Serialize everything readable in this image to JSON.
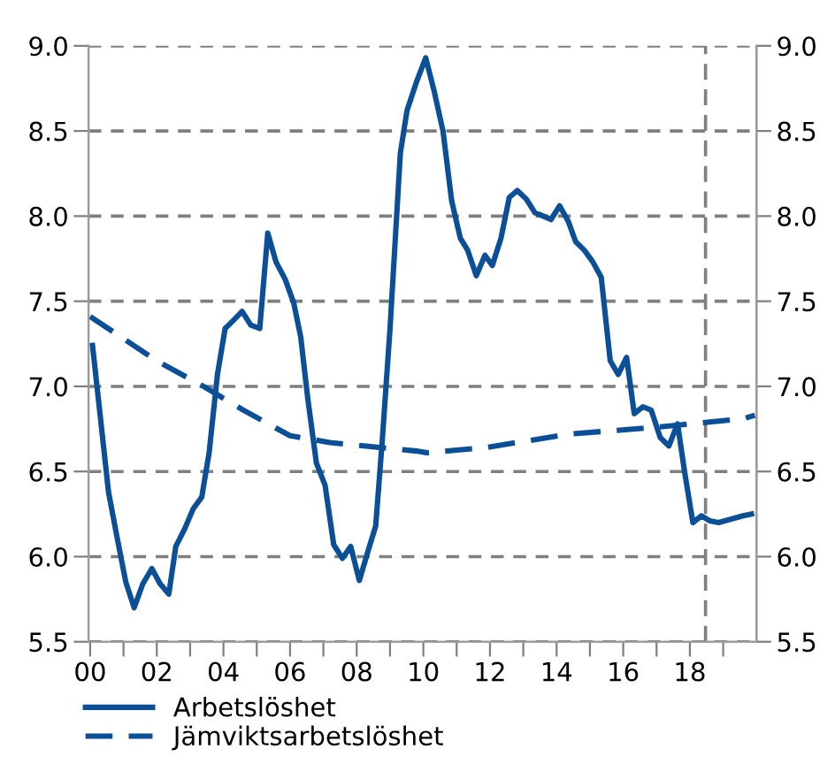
{
  "chart_data": {
    "type": "line",
    "series": [
      {
        "name": "Arbetslöshet",
        "color": "#0b4f96",
        "line_style": "solid",
        "x": [
          0.07,
          0.3,
          0.55,
          0.81,
          1.07,
          1.32,
          1.58,
          1.85,
          2.1,
          2.36,
          2.57,
          2.83,
          3.09,
          3.35,
          3.57,
          3.82,
          4.05,
          4.31,
          4.56,
          4.82,
          5.09,
          5.33,
          5.58,
          5.85,
          6.11,
          6.32,
          6.53,
          6.79,
          7.05,
          7.31,
          7.57,
          7.82,
          8.08,
          8.35,
          8.57,
          8.77,
          9.0,
          9.31,
          9.51,
          9.78,
          10.07,
          10.33,
          10.59,
          10.85,
          11.11,
          11.33,
          11.59,
          11.85,
          12.07,
          12.33,
          12.58,
          12.82,
          13.09,
          13.35,
          13.6,
          13.83,
          14.09,
          14.35,
          14.57,
          14.83,
          15.09,
          15.34,
          15.61,
          15.85,
          16.1,
          16.33,
          16.59,
          16.84,
          17.11,
          17.37,
          17.63,
          17.84,
          18.09,
          18.35,
          18.6,
          18.86,
          19.6,
          19.85
        ],
        "values": [
          7.24,
          6.83,
          6.38,
          6.11,
          5.85,
          5.7,
          5.84,
          5.93,
          5.84,
          5.78,
          6.06,
          6.16,
          6.28,
          6.35,
          6.61,
          7.07,
          7.34,
          7.39,
          7.44,
          7.36,
          7.34,
          7.9,
          7.73,
          7.63,
          7.49,
          7.29,
          6.93,
          6.55,
          6.42,
          6.07,
          5.99,
          6.06,
          5.86,
          6.04,
          6.18,
          6.69,
          7.34,
          8.37,
          8.62,
          8.78,
          8.93,
          8.73,
          8.5,
          8.09,
          7.87,
          7.8,
          7.65,
          7.77,
          7.71,
          7.87,
          8.11,
          8.15,
          8.1,
          8.02,
          8.0,
          7.98,
          8.06,
          7.97,
          7.85,
          7.8,
          7.73,
          7.64,
          7.15,
          7.07,
          7.17,
          6.84,
          6.88,
          6.86,
          6.7,
          6.65,
          6.78,
          6.5,
          6.2,
          6.24,
          6.21,
          6.2,
          6.24,
          6.25
        ]
      },
      {
        "name": "Jämviktsarbetslöshet",
        "color": "#0b4f96",
        "line_style": "dashed",
        "x": [
          0.0,
          2.0,
          3.4,
          4.6,
          6.0,
          7.2,
          9.8,
          10.1,
          11.85,
          14.4,
          17.0,
          19.6,
          19.95
        ],
        "values": [
          7.41,
          7.15,
          7.0,
          6.86,
          6.71,
          6.67,
          6.62,
          6.61,
          6.64,
          6.72,
          6.76,
          6.81,
          6.83
        ]
      }
    ],
    "xlim": [
      -0.05,
      20
    ],
    "xticks": [
      {
        "value": 0,
        "label": "00"
      },
      {
        "value": 1,
        "label": null
      },
      {
        "value": 2,
        "label": "02"
      },
      {
        "value": 3,
        "label": null
      },
      {
        "value": 4,
        "label": "04"
      },
      {
        "value": 5,
        "label": null
      },
      {
        "value": 6,
        "label": "06"
      },
      {
        "value": 7,
        "label": null
      },
      {
        "value": 8,
        "label": "08"
      },
      {
        "value": 9,
        "label": null
      },
      {
        "value": 10,
        "label": "10"
      },
      {
        "value": 11,
        "label": null
      },
      {
        "value": 12,
        "label": "12"
      },
      {
        "value": 13,
        "label": null
      },
      {
        "value": 14,
        "label": "14"
      },
      {
        "value": 15,
        "label": null
      },
      {
        "value": 16,
        "label": "16"
      },
      {
        "value": 17,
        "label": null
      },
      {
        "value": 18,
        "label": "18"
      },
      {
        "value": 19,
        "label": null
      }
    ],
    "ylim": [
      5.5,
      9.0
    ],
    "yticks": [
      {
        "value": 5.5,
        "label": "5.5"
      },
      {
        "value": 6.0,
        "label": "6.0"
      },
      {
        "value": 6.5,
        "label": "6.5"
      },
      {
        "value": 7.0,
        "label": "7.0"
      },
      {
        "value": 7.5,
        "label": "7.5"
      },
      {
        "value": 8.0,
        "label": "8.0"
      },
      {
        "value": 8.5,
        "label": "8.5"
      },
      {
        "value": 9.0,
        "label": "9.0"
      }
    ],
    "y2lim": [
      5.5,
      9.0
    ],
    "y2ticks": [
      {
        "value": 5.5,
        "label": "5.5"
      },
      {
        "value": 6.0,
        "label": "6.0"
      },
      {
        "value": 6.5,
        "label": "6.5"
      },
      {
        "value": 7.0,
        "label": "7.0"
      },
      {
        "value": 7.5,
        "label": "7.5"
      },
      {
        "value": 8.0,
        "label": "8.0"
      },
      {
        "value": 8.5,
        "label": "8.5"
      },
      {
        "value": 9.0,
        "label": "9.0"
      }
    ],
    "ref_lines": [
      {
        "axis": "x",
        "value": 18.47,
        "label": null,
        "color": "#7f7f7f",
        "line_style": "dashed"
      }
    ],
    "grid": "y",
    "legend": "bottom",
    "marker": "none"
  }
}
